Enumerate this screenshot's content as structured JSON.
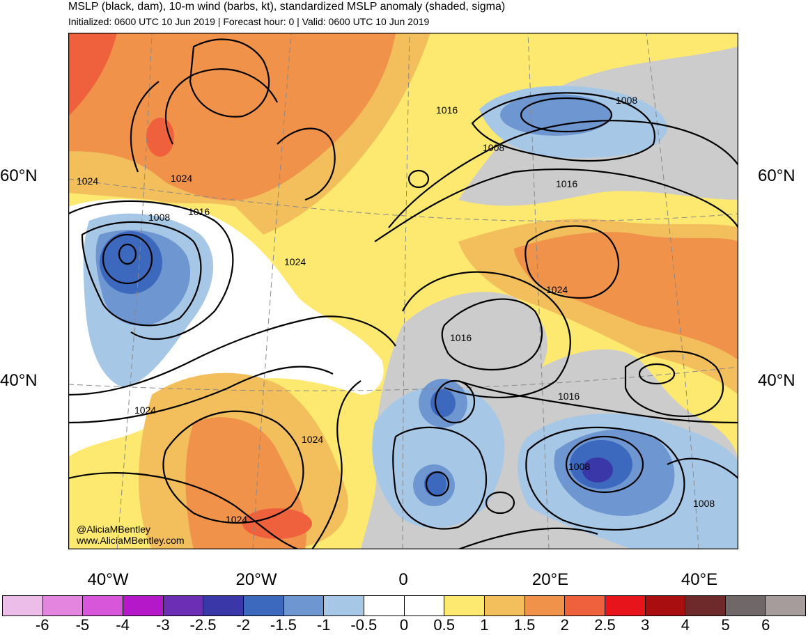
{
  "header": {
    "title": "MSLP (black, dam), 10-m wind (barbs, kt), standardized MSLP anomaly (shaded, sigma)",
    "subtitle": "Initialized: 0600 UTC 10 Jun 2019 | Forecast hour: 0 | Valid: 0600 UTC 10 Jun 2019"
  },
  "map": {
    "lat_labels": {
      "lat60": "60°N",
      "lat40": "40°N"
    },
    "lon_labels": {
      "w40": "40°W",
      "w20": "20°W",
      "zero": "0",
      "e20": "20°E",
      "e40": "40°E"
    },
    "contour_labels": [
      {
        "text": "1016"
      },
      {
        "text": "1008"
      },
      {
        "text": "1008"
      },
      {
        "text": "1016"
      },
      {
        "text": "1024"
      },
      {
        "text": "1024"
      },
      {
        "text": "1008"
      },
      {
        "text": "1016"
      },
      {
        "text": "1024"
      },
      {
        "text": "1024"
      },
      {
        "text": "1016"
      },
      {
        "text": "1016"
      },
      {
        "text": "1024"
      },
      {
        "text": "1024"
      },
      {
        "text": "1024"
      },
      {
        "text": "1008"
      },
      {
        "text": "1008"
      }
    ],
    "credit": {
      "handle": "@AliciaMBentley",
      "site": "www.AliciaMBentley.com"
    }
  },
  "colorbar": {
    "colors": [
      "#ebbde8",
      "#e485e0",
      "#d856d9",
      "#b518c8",
      "#6b2eb4",
      "#3a38a8",
      "#3c68bd",
      "#6e96d1",
      "#a6c8e6",
      "#ffffff",
      "#ffffff",
      "#fde96f",
      "#f3be5c",
      "#f0924a",
      "#ef603c",
      "#e8141c",
      "#a80d0f",
      "#6e2a2a",
      "#706868",
      "#a69c9c"
    ],
    "ticks": [
      "-6",
      "-5",
      "-4",
      "-3",
      "-2.5",
      "-2",
      "-1.5",
      "-1",
      "-0.5",
      "0",
      "0.5",
      "1",
      "1.5",
      "2",
      "2.5",
      "3",
      "4",
      "5",
      "6"
    ]
  },
  "land_color": "#cccccc"
}
